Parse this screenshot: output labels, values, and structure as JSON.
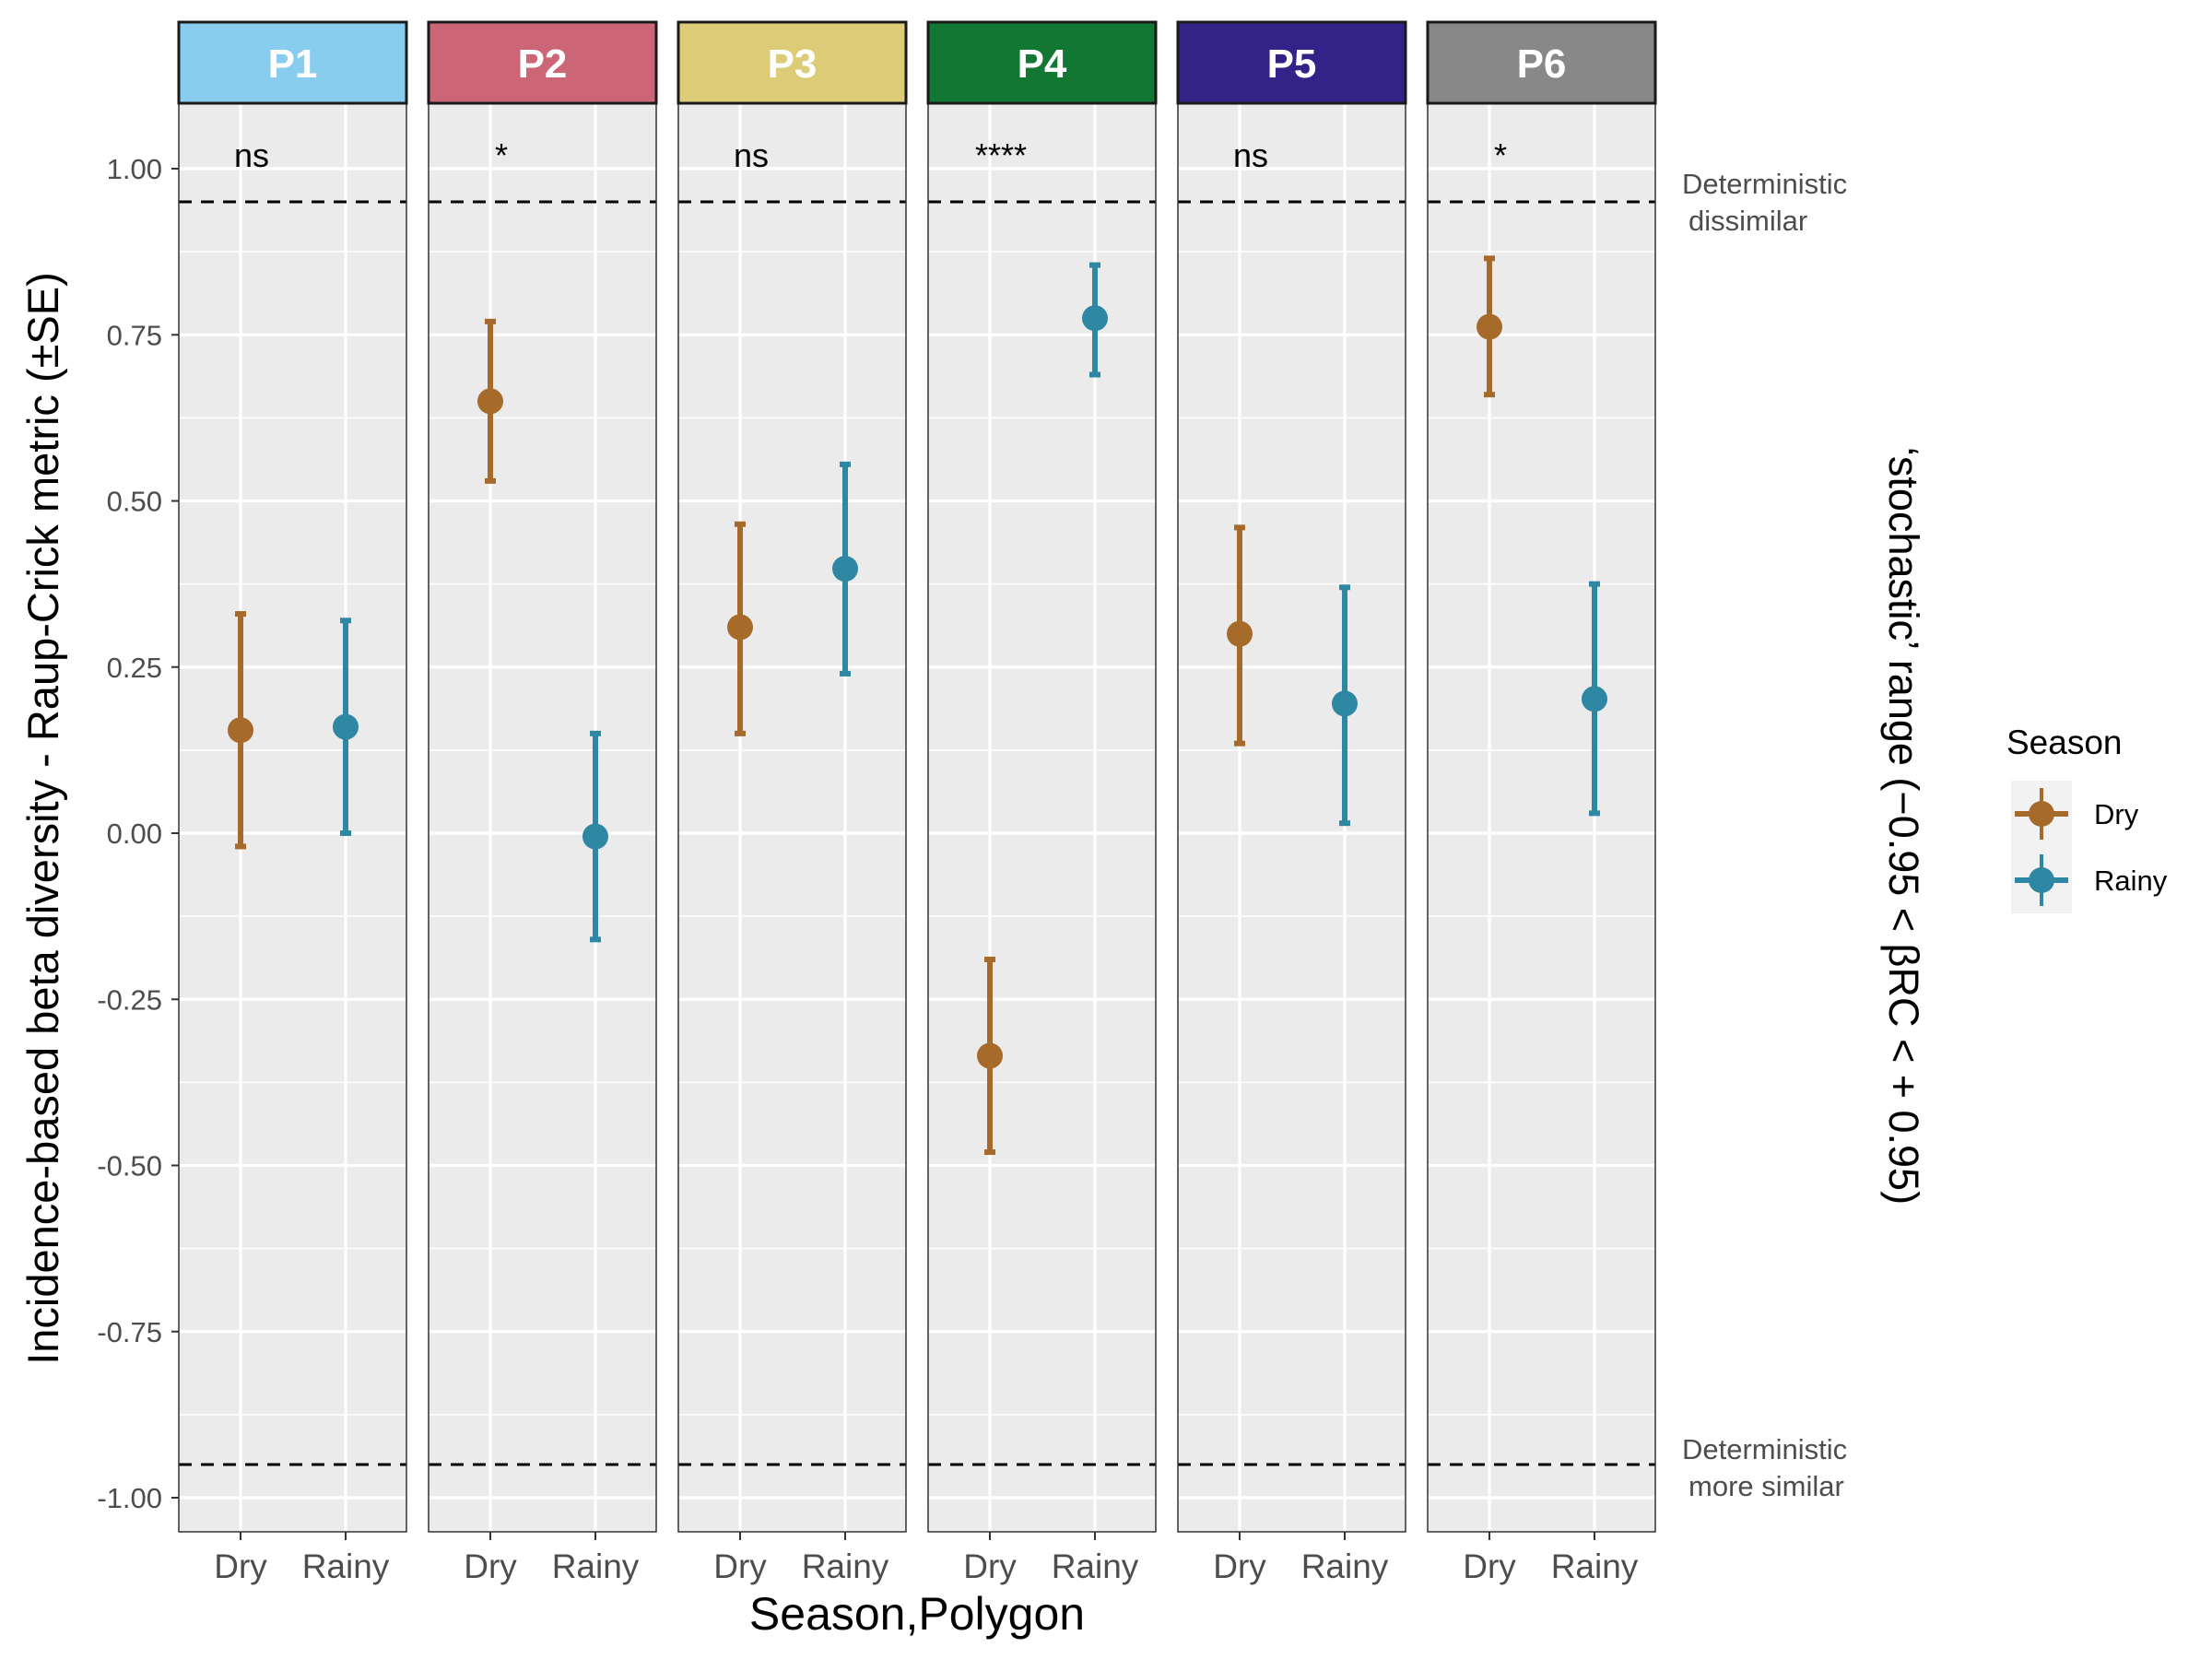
{
  "chart_data": {
    "type": "scatter",
    "ylabel": "Incidence-based beta diversity - Raup-Crick metric (±SE)",
    "xlabel": "Season,Polygon",
    "right_label": "‘stochastic’ range (−0.95 < βRC < + 0.95)",
    "ylim": [
      -1.05,
      1.1
    ],
    "y_ticks": [
      1.0,
      0.75,
      0.5,
      0.25,
      0.0,
      -0.25,
      -0.5,
      -0.75,
      -1.0
    ],
    "y_tick_labels": [
      "1.00",
      "0.75",
      "0.50",
      "0.25",
      "0.00",
      "-0.25",
      "-0.50",
      "-0.75",
      "-1.00"
    ],
    "categories": [
      "Dry",
      "Rainy"
    ],
    "threshold_lines": [
      0.95,
      -0.95
    ],
    "annotations": {
      "upper": [
        "Deterministic",
        "dissimilar"
      ],
      "lower": [
        "Deterministic",
        "more similar"
      ]
    },
    "legend": {
      "title": "Season",
      "position": "right",
      "entries": [
        {
          "label": "Dry",
          "color": "#A66B2A"
        },
        {
          "label": "Rainy",
          "color": "#2E87A3"
        }
      ]
    },
    "grid": true,
    "panels": [
      {
        "label": "P1",
        "strip_color": "#88CCEE",
        "significance": "ns",
        "points": [
          {
            "season": "Dry",
            "mean": 0.155,
            "lower": -0.02,
            "upper": 0.33
          },
          {
            "season": "Rainy",
            "mean": 0.16,
            "lower": 0.0,
            "upper": 0.32
          }
        ]
      },
      {
        "label": "P2",
        "strip_color": "#CC6677",
        "significance": "*",
        "points": [
          {
            "season": "Dry",
            "mean": 0.65,
            "lower": 0.53,
            "upper": 0.77
          },
          {
            "season": "Rainy",
            "mean": -0.005,
            "lower": -0.16,
            "upper": 0.15
          }
        ]
      },
      {
        "label": "P3",
        "strip_color": "#DDCC77",
        "significance": "ns",
        "points": [
          {
            "season": "Dry",
            "mean": 0.31,
            "lower": 0.15,
            "upper": 0.465
          },
          {
            "season": "Rainy",
            "mean": 0.398,
            "lower": 0.24,
            "upper": 0.555
          }
        ]
      },
      {
        "label": "P4",
        "strip_color": "#117733",
        "significance": "****",
        "points": [
          {
            "season": "Dry",
            "mean": -0.335,
            "lower": -0.48,
            "upper": -0.19
          },
          {
            "season": "Rainy",
            "mean": 0.775,
            "lower": 0.69,
            "upper": 0.855
          }
        ]
      },
      {
        "label": "P5",
        "strip_color": "#332288",
        "significance": "ns",
        "points": [
          {
            "season": "Dry",
            "mean": 0.3,
            "lower": 0.135,
            "upper": 0.46
          },
          {
            "season": "Rainy",
            "mean": 0.195,
            "lower": 0.015,
            "upper": 0.37
          }
        ]
      },
      {
        "label": "P6",
        "strip_color": "#888888",
        "significance": "*",
        "points": [
          {
            "season": "Dry",
            "mean": 0.762,
            "lower": 0.66,
            "upper": 0.865
          },
          {
            "season": "Rainy",
            "mean": 0.202,
            "lower": 0.03,
            "upper": 0.375
          }
        ]
      }
    ]
  }
}
